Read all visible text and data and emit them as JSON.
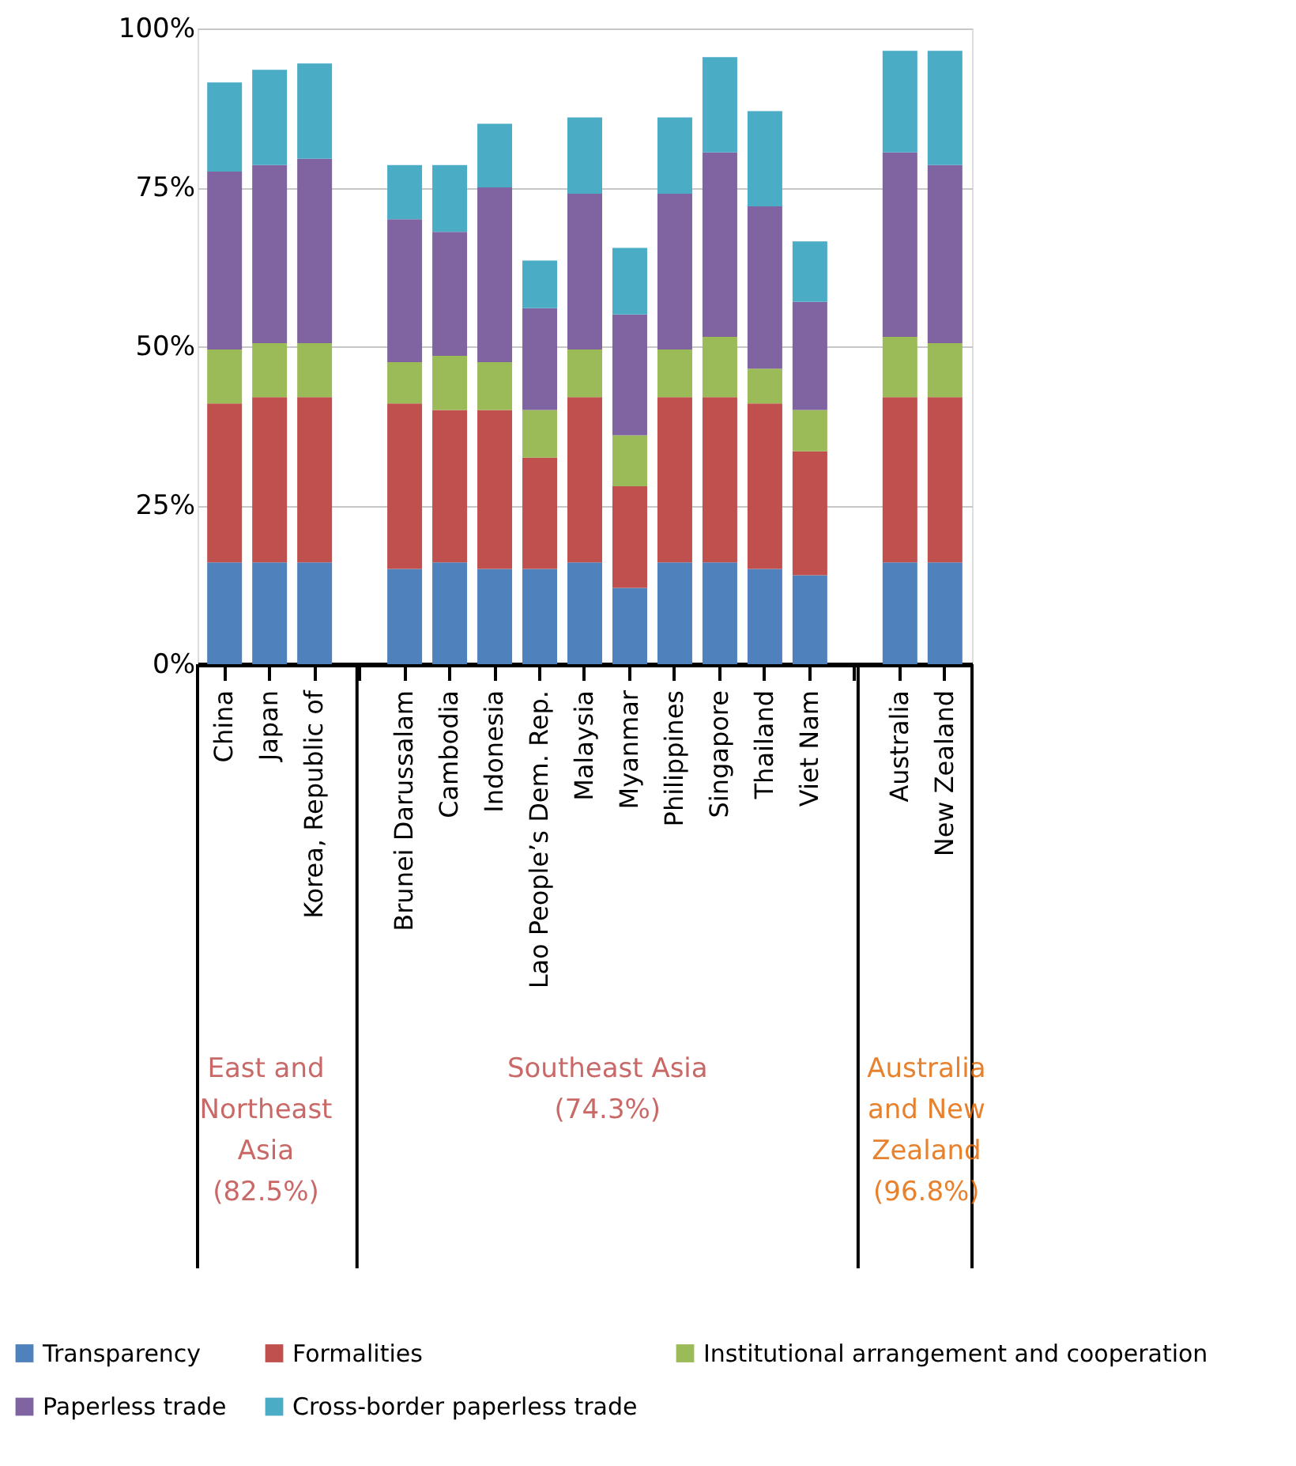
{
  "chart_data": {
    "type": "bar",
    "stacked": true,
    "categories": [
      "China",
      "Japan",
      "Korea, Republic of",
      null,
      "Brunei Darussalam",
      "Cambodia",
      "Indonesia",
      "Lao People’s Dem. Rep.",
      "Malaysia",
      "Myanmar",
      "Philippines",
      "Singapore",
      "Thailand",
      "Viet Nam",
      null,
      "Australia",
      "New Zealand"
    ],
    "series": [
      {
        "name": "Transparency",
        "color": "#4f81bd",
        "values": [
          16,
          16,
          16,
          null,
          15,
          16,
          15,
          15,
          16,
          12,
          16,
          16,
          15,
          14,
          null,
          16,
          16
        ]
      },
      {
        "name": "Formalities",
        "color": "#c0504d",
        "values": [
          25,
          26,
          26,
          null,
          26,
          24,
          25,
          17.5,
          26,
          16,
          26,
          26,
          26,
          19.5,
          null,
          26,
          26
        ]
      },
      {
        "name": "Institutional arrangement and cooperation",
        "color": "#9bbb59",
        "values": [
          8.5,
          8.5,
          8.5,
          null,
          6.5,
          8.5,
          7.5,
          7.5,
          7.5,
          8,
          7.5,
          9.5,
          5.5,
          6.5,
          null,
          9.5,
          8.5
        ]
      },
      {
        "name": "Paperless trade",
        "color": "#8064a2",
        "values": [
          28,
          28,
          29,
          null,
          22.5,
          19.5,
          27.5,
          16,
          24.5,
          19,
          24.5,
          29,
          25.5,
          17,
          null,
          29,
          28
        ]
      },
      {
        "name": "Cross-border paperless trade",
        "color": "#4bacc6",
        "values": [
          14,
          15,
          15,
          null,
          8.5,
          10.5,
          10,
          7.5,
          12,
          10.5,
          12,
          15,
          15,
          9.5,
          null,
          16,
          18
        ]
      }
    ],
    "ylim": [
      0,
      100
    ],
    "yticks": [
      {
        "value": 0,
        "label": "0%"
      },
      {
        "value": 25,
        "label": "25%"
      },
      {
        "value": 50,
        "label": "50%"
      },
      {
        "value": 75,
        "label": "75%"
      },
      {
        "value": 100,
        "label": "100%"
      }
    ],
    "grid": "y",
    "legend": "bottom",
    "annotations": [
      "East and\nNortheast\nAsia\n(82.5%)",
      "Southeast Asia\n(74.3%)",
      "Australia\nand New\nZealand\n(96.8%)"
    ]
  }
}
